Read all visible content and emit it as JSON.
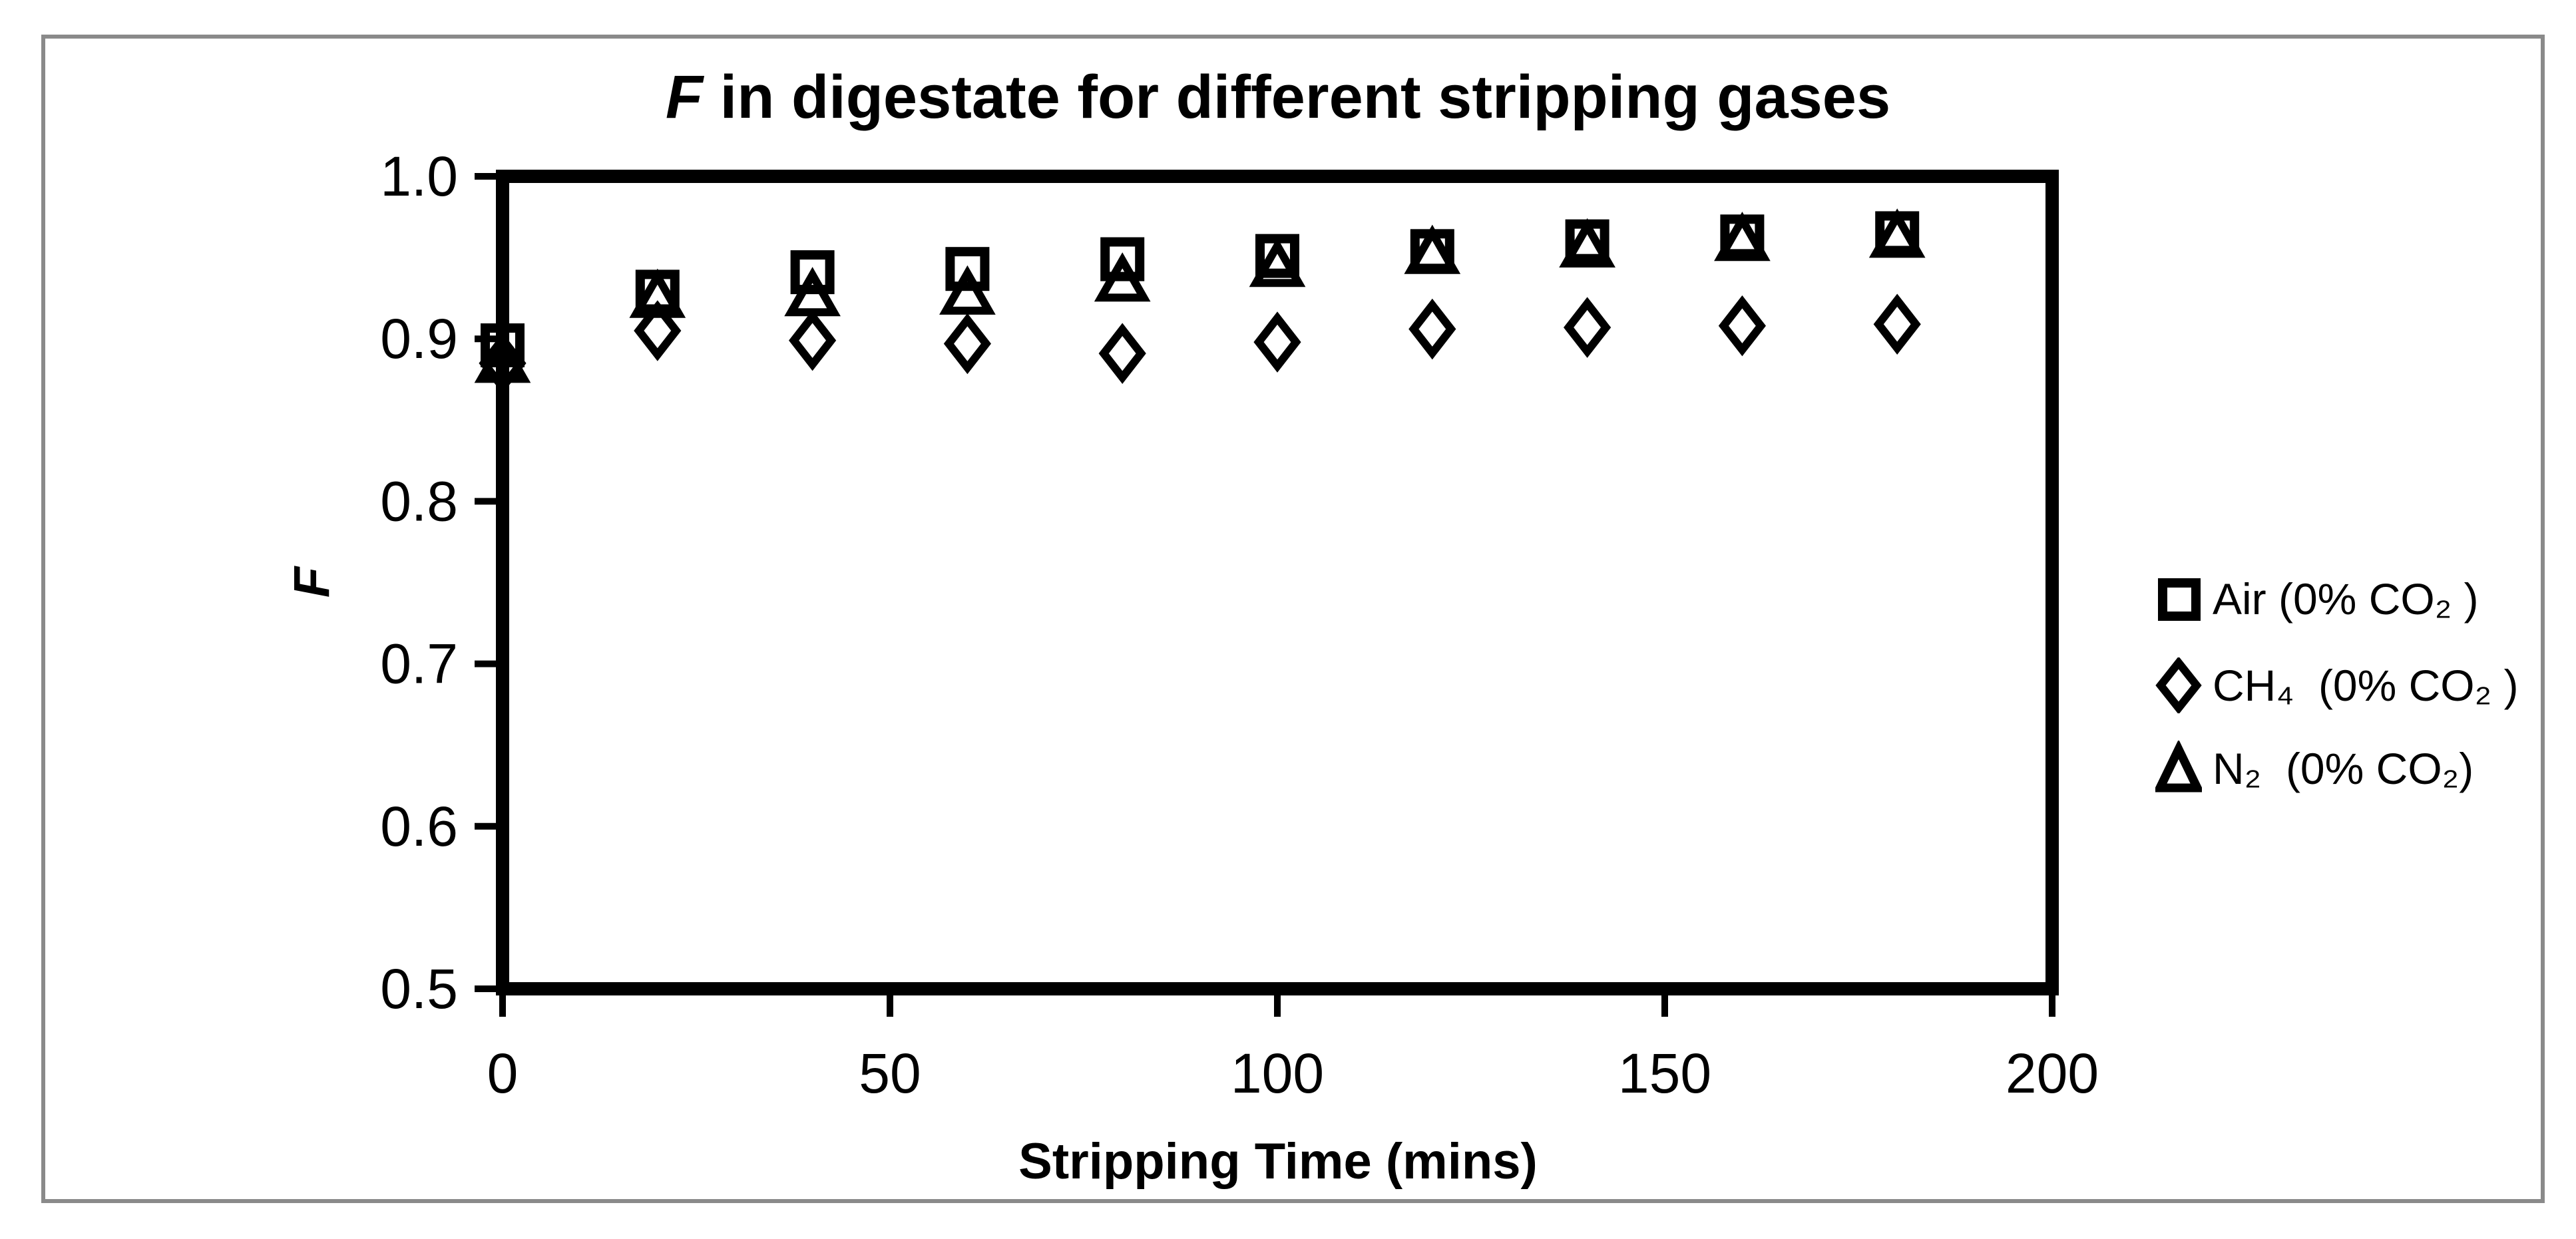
{
  "figure": {
    "title": {
      "italic_part": "F",
      "rest": " in digestate for different stripping gases"
    },
    "x_axis": {
      "label": "Stripping Time (mins)",
      "tick_labels": [
        "0",
        "50",
        "100",
        "150",
        "200"
      ]
    },
    "y_axis": {
      "label": "F",
      "tick_labels": [
        "1.0",
        "0.9",
        "0.8",
        "0.7",
        "0.6",
        "0.5"
      ]
    },
    "colors": {
      "marker": "#000000",
      "outer_frame": "#8a8a8a",
      "background": "#ffffff"
    }
  },
  "legend": {
    "items": [
      {
        "marker": "square",
        "label": "Air (0% CO₂ )"
      },
      {
        "marker": "diamond",
        "label": "CH₄  (0% CO₂ )"
      },
      {
        "marker": "triangle",
        "label": "N₂  (0% CO₂)"
      }
    ]
  },
  "chart_data": {
    "type": "scatter",
    "title": "F in digestate for different stripping gases",
    "xlabel": "Stripping Time (mins)",
    "ylabel": "F",
    "xlim": [
      0,
      200
    ],
    "ylim": [
      0.5,
      1.0
    ],
    "x_ticks": [
      0,
      50,
      100,
      150,
      200
    ],
    "y_ticks": [
      1.0,
      0.9,
      0.8,
      0.7,
      0.6,
      0.5
    ],
    "grid": false,
    "legend_position": "right-outside",
    "x": [
      0,
      20,
      40,
      60,
      80,
      100,
      120,
      140,
      160,
      180
    ],
    "series": [
      {
        "name": "Air (0% CO2)",
        "marker": "square",
        "values": [
          0.896,
          0.929,
          0.941,
          0.943,
          0.949,
          0.951,
          0.954,
          0.96,
          0.963,
          0.965
        ]
      },
      {
        "name": "CH4 (0% CO2)",
        "marker": "diamond",
        "values": [
          0.885,
          0.905,
          0.899,
          0.897,
          0.891,
          0.898,
          0.906,
          0.907,
          0.908,
          0.909
        ]
      },
      {
        "name": "N2 (0% CO2)",
        "marker": "triangle",
        "values": [
          0.886,
          0.926,
          0.927,
          0.928,
          0.936,
          0.945,
          0.953,
          0.957,
          0.961,
          0.963
        ]
      }
    ]
  }
}
